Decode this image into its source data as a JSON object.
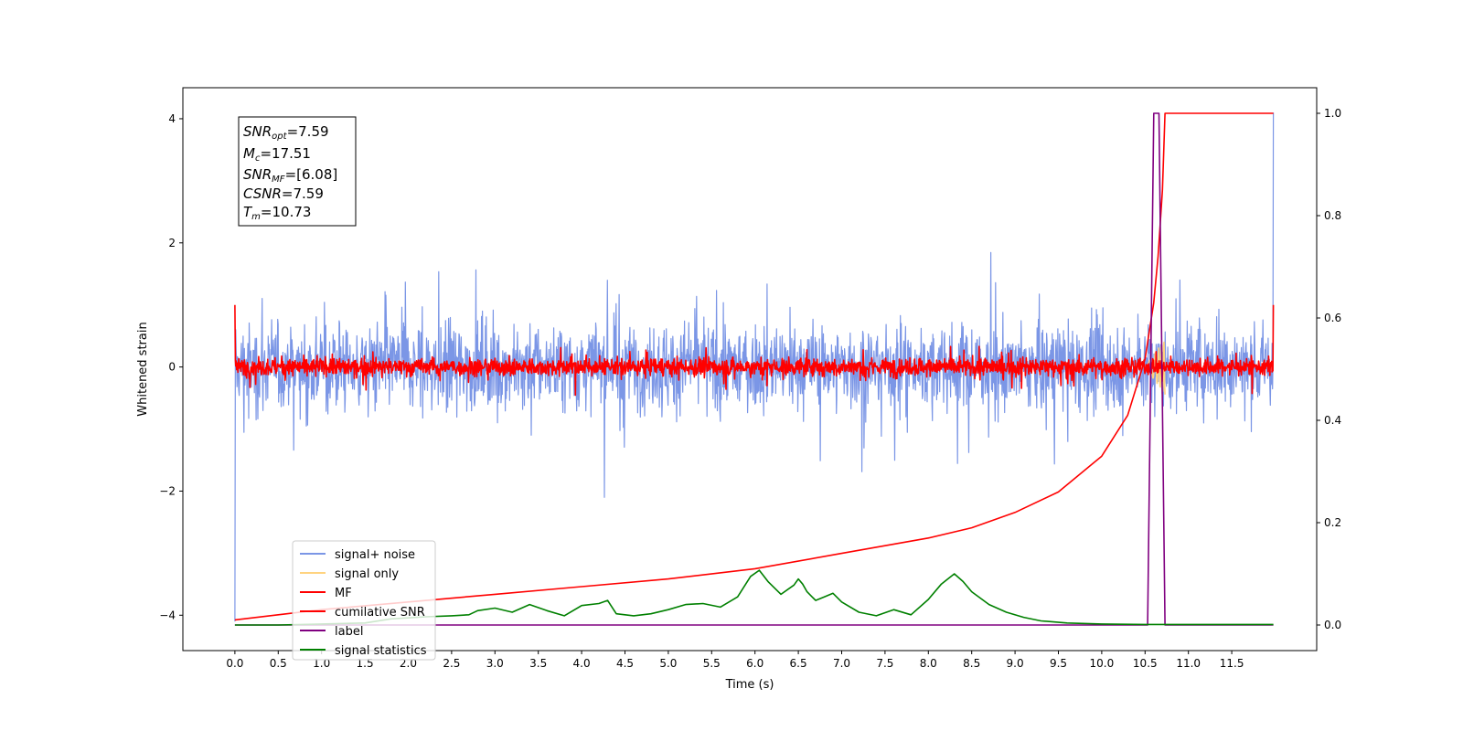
{
  "chart_data": {
    "type": "line",
    "xlabel": "Time (s)",
    "ylabel": "Whitened strain",
    "xlim": [
      -0.6,
      12.48
    ],
    "ylim_left": [
      -4.57,
      4.5
    ],
    "ylim_right": [
      -0.05,
      1.05
    ],
    "x_ticks": [
      "0.0",
      "0.5",
      "1.0",
      "1.5",
      "2.0",
      "2.5",
      "3.0",
      "3.5",
      "4.0",
      "4.5",
      "5.0",
      "5.5",
      "6.0",
      "6.5",
      "7.0",
      "7.5",
      "8.0",
      "8.5",
      "9.0",
      "9.5",
      "10.0",
      "10.5",
      "11.0",
      "11.5"
    ],
    "y_ticks_left": [
      "4",
      "2",
      "0",
      "−2",
      "−4"
    ],
    "y_ticks_right": [
      "1.0",
      "0.8",
      "0.6",
      "0.4",
      "0.2",
      "0.0"
    ],
    "grid": false,
    "legend_position": "lower-left",
    "info_box": {
      "snr_opt": {
        "main": "SNR",
        "sub": "opt",
        "value": "=7.59"
      },
      "mc": {
        "main": "M",
        "sub": "c",
        "value": "=17.51"
      },
      "snr_mf": {
        "main": "SNR",
        "sub": "MF",
        "value": "=[6.08]"
      },
      "csnr": {
        "main": "CSNR",
        "sub": "",
        "value": "=7.59"
      },
      "tm": {
        "main": "T",
        "sub": "m",
        "value": "=10.73"
      }
    },
    "series": [
      {
        "name": "signal+ noise",
        "color": "#7b96e6",
        "axis": "left",
        "kind": "noise",
        "x_range": [
          0,
          11.98
        ],
        "amplitude_std": 0.62,
        "start_value": -4.1,
        "end_value": 4.1
      },
      {
        "name": "signal only",
        "color": "#ffd37f",
        "axis": "left",
        "kind": "chirp",
        "x_range": [
          10.5,
          10.73
        ],
        "peak": 0.45
      },
      {
        "name": "MF",
        "color": "#ff0000",
        "axis": "left",
        "kind": "noise",
        "x_range": [
          0,
          11.98
        ],
        "amplitude_std": 0.13,
        "start_value": 1.0,
        "end_value": 1.0
      },
      {
        "name": "cumilative SNR",
        "color": "#ff0000",
        "axis": "right",
        "x": [
          0.0,
          0.5,
          1.0,
          2.0,
          3.0,
          4.0,
          5.0,
          6.0,
          7.0,
          8.0,
          8.5,
          9.0,
          9.5,
          10.0,
          10.3,
          10.5,
          10.6,
          10.65,
          10.7,
          10.73,
          11.98
        ],
        "values": [
          0.01,
          0.02,
          0.03,
          0.045,
          0.06,
          0.075,
          0.09,
          0.11,
          0.14,
          0.17,
          0.19,
          0.22,
          0.26,
          0.33,
          0.41,
          0.52,
          0.63,
          0.72,
          0.85,
          1.0,
          1.0
        ]
      },
      {
        "name": "label",
        "color": "#800080",
        "axis": "right",
        "x": [
          0.0,
          10.53,
          10.6,
          10.66,
          10.73,
          11.98
        ],
        "values": [
          0.0,
          0.0,
          1.0,
          1.0,
          0.0,
          0.0
        ]
      },
      {
        "name": "signal statistics",
        "color": "#008000",
        "axis": "right",
        "x": [
          0.0,
          0.5,
          1.0,
          1.5,
          1.8,
          2.0,
          2.2,
          2.5,
          2.7,
          2.8,
          3.0,
          3.2,
          3.4,
          3.6,
          3.8,
          4.0,
          4.2,
          4.3,
          4.4,
          4.6,
          4.8,
          5.0,
          5.2,
          5.4,
          5.6,
          5.8,
          5.95,
          6.05,
          6.15,
          6.3,
          6.45,
          6.5,
          6.55,
          6.6,
          6.7,
          6.8,
          6.9,
          7.0,
          7.2,
          7.4,
          7.6,
          7.8,
          8.0,
          8.15,
          8.3,
          8.4,
          8.5,
          8.7,
          8.9,
          9.1,
          9.3,
          9.6,
          10.0,
          10.5,
          11.98
        ],
        "values": [
          0.0,
          0.0,
          0.002,
          0.004,
          0.012,
          0.014,
          0.016,
          0.018,
          0.02,
          0.028,
          0.033,
          0.025,
          0.04,
          0.028,
          0.018,
          0.038,
          0.042,
          0.048,
          0.022,
          0.018,
          0.022,
          0.03,
          0.04,
          0.042,
          0.035,
          0.055,
          0.095,
          0.107,
          0.085,
          0.06,
          0.078,
          0.09,
          0.08,
          0.065,
          0.048,
          0.055,
          0.062,
          0.045,
          0.025,
          0.018,
          0.03,
          0.02,
          0.05,
          0.08,
          0.1,
          0.085,
          0.065,
          0.04,
          0.025,
          0.015,
          0.008,
          0.004,
          0.002,
          0.001,
          0.001
        ]
      }
    ]
  }
}
